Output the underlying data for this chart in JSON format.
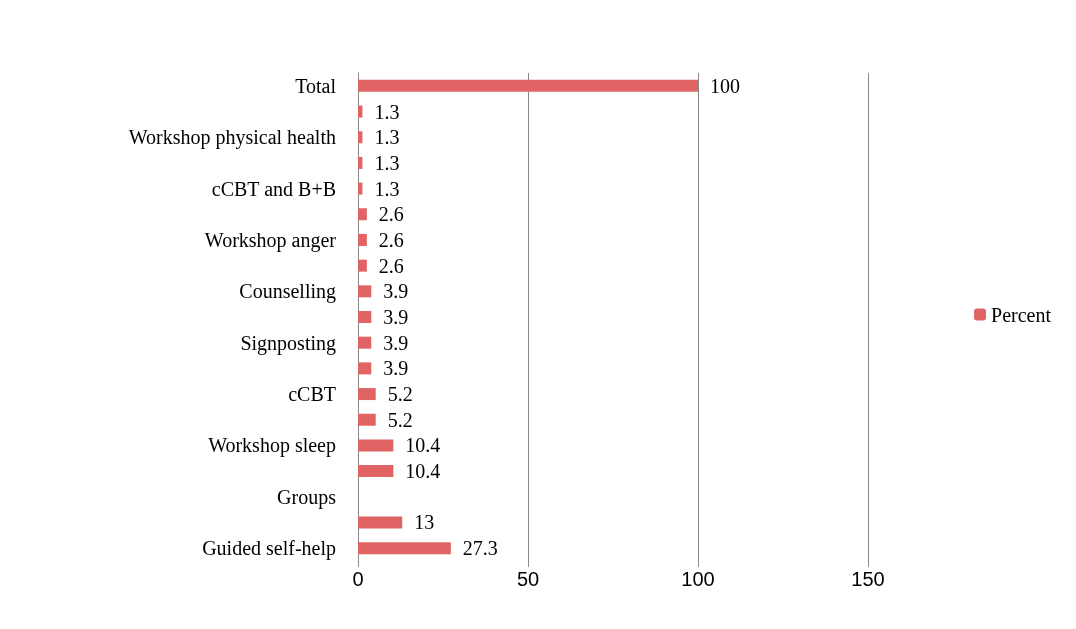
{
  "chart_data": {
    "type": "bar",
    "orientation": "horizontal",
    "categories": [
      "Total",
      null,
      "Workshop physical health",
      null,
      "cCBT and B+B",
      null,
      "Workshop anger",
      null,
      "Counselling",
      null,
      "Signposting",
      null,
      "cCBT",
      null,
      "Workshop sleep",
      null,
      "Groups",
      null,
      "Guided self-help"
    ],
    "series": [
      {
        "name": "Percent",
        "color": "#e06464",
        "values": [
          100,
          1.3,
          1.3,
          1.3,
          1.3,
          2.6,
          2.6,
          2.6,
          3.9,
          3.9,
          3.9,
          3.9,
          5.2,
          5.2,
          10.4,
          10.4,
          null,
          13,
          27.3
        ]
      }
    ],
    "xlim": [
      0,
      150
    ],
    "xticks": [
      0,
      50,
      100,
      150
    ],
    "grid": "x",
    "legend": "right",
    "data_labels": true
  }
}
